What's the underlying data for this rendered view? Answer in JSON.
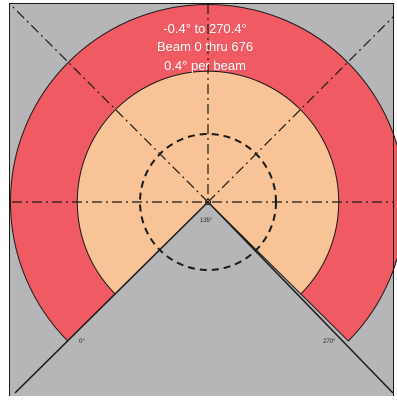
{
  "colors": {
    "background": "#b6b6b8",
    "outer_ring": "#f05a62",
    "inner_area": "#f8c396",
    "frame": "#1a1a1a",
    "text_light": "#ffffff",
    "text_dark": "#222222"
  },
  "info": {
    "line1": "-0.4° to  270.4°",
    "line2": "Beam 0 thru 676",
    "line3": "0.4° per beam"
  },
  "angle_labels": {
    "start": "0°",
    "mid": "135°",
    "end": "270°"
  }
}
